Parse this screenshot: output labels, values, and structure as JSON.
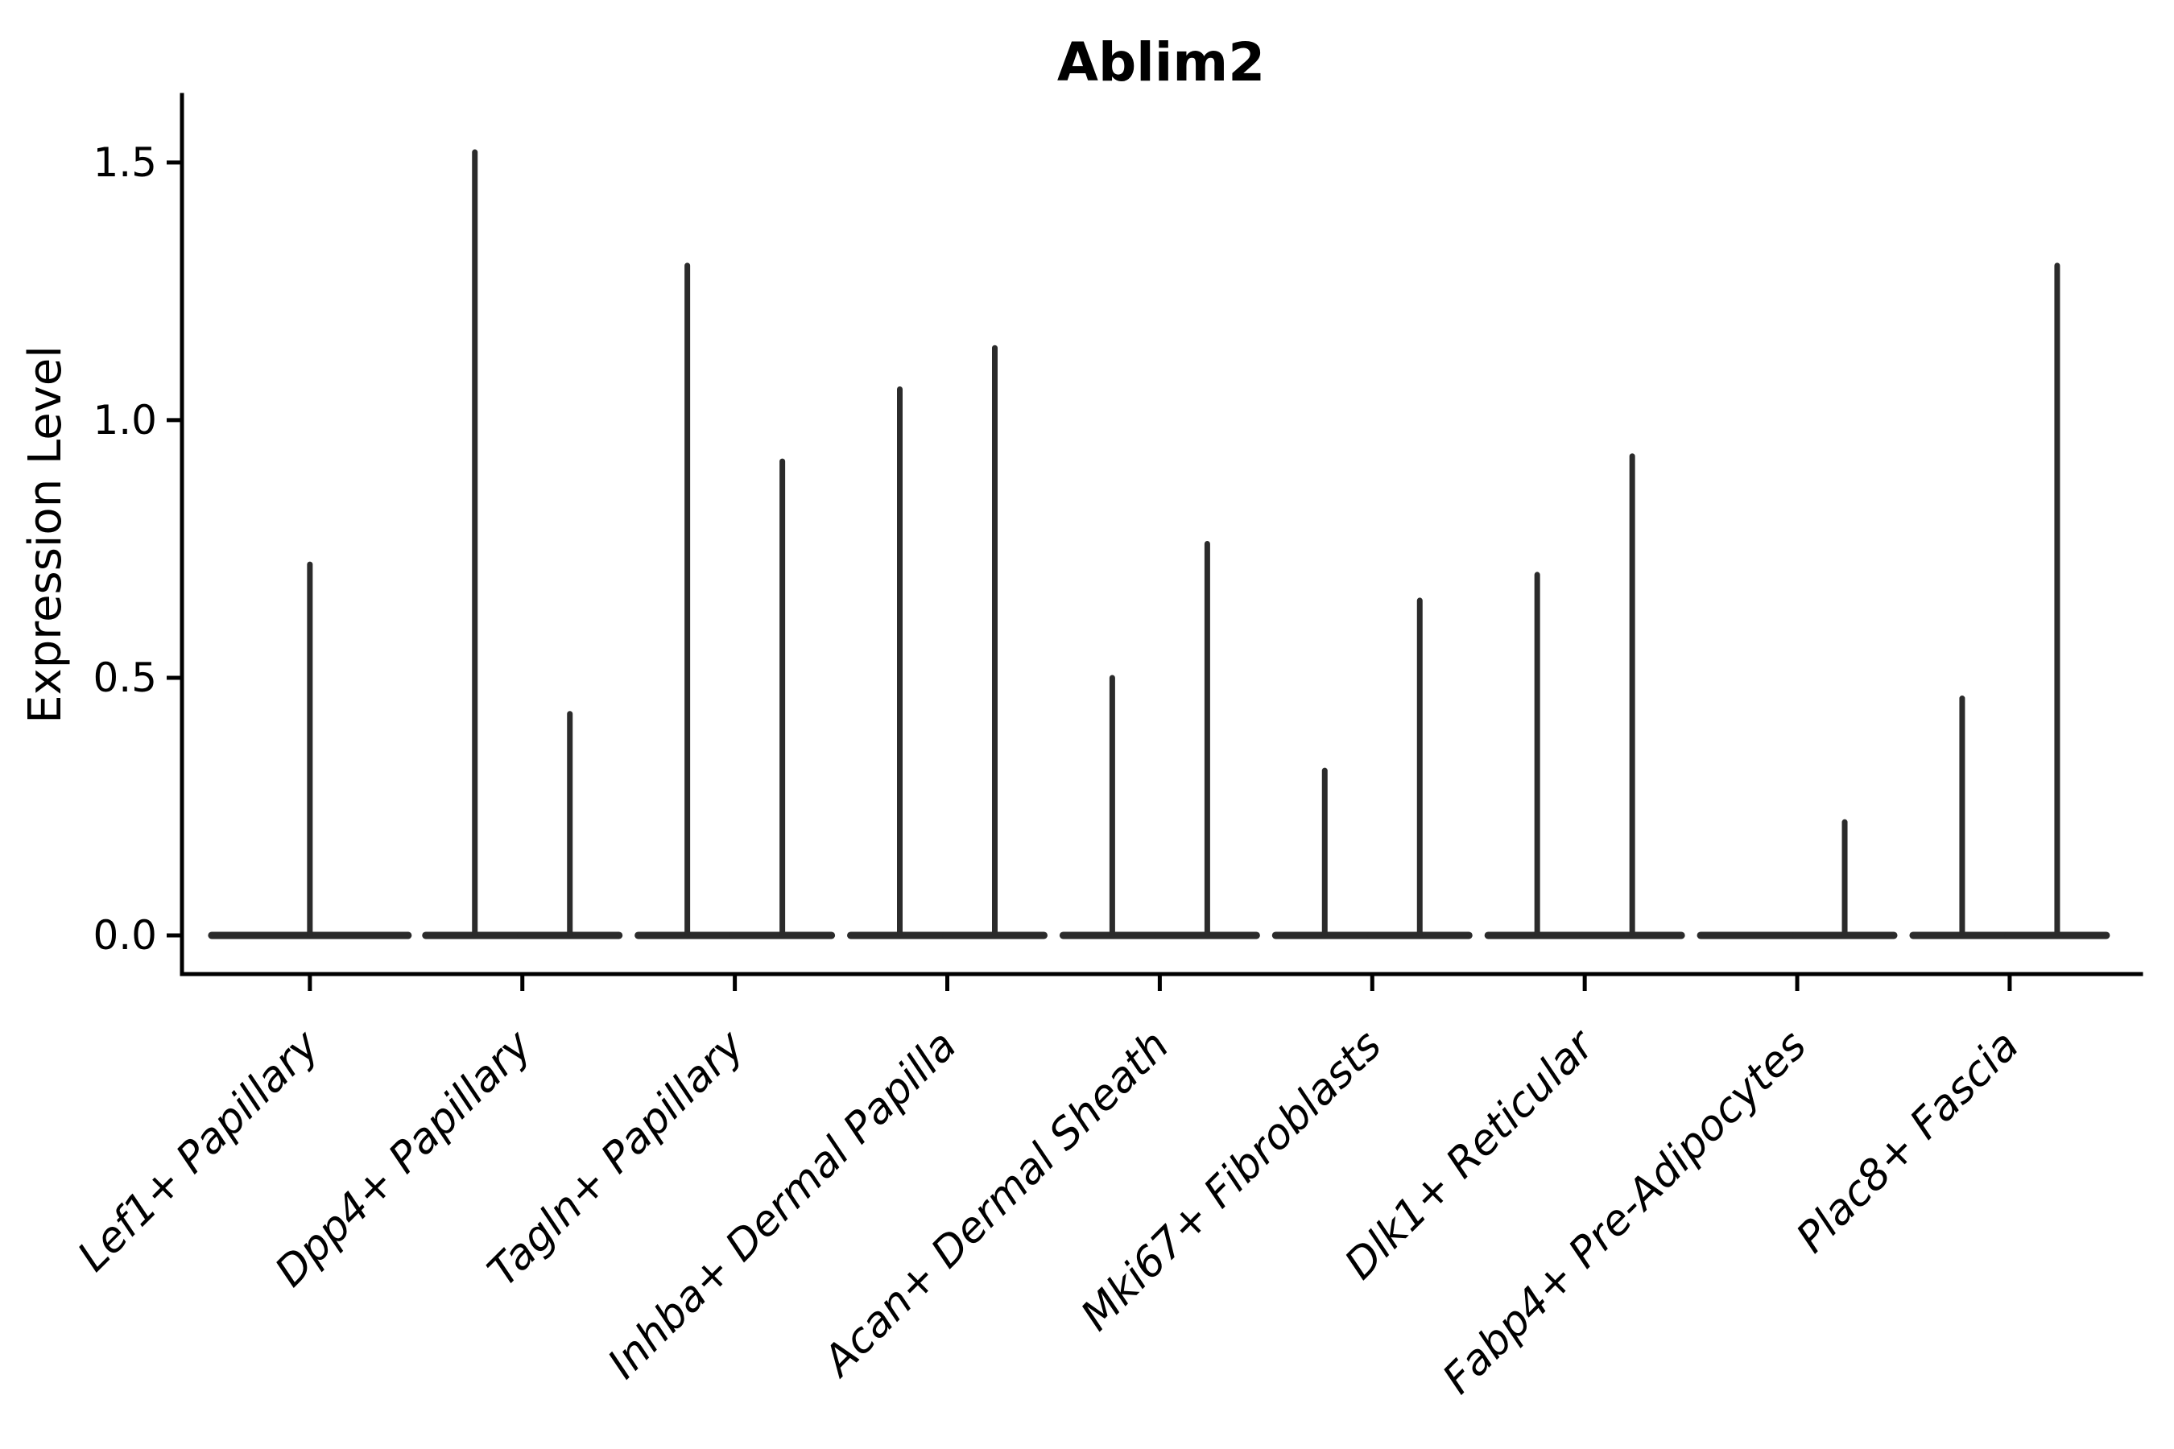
{
  "chart_data": {
    "type": "violin",
    "title": "Ablim2",
    "xlabel": "",
    "ylabel": "Expression Level",
    "grid": false,
    "legend": null,
    "background_color": "#ffffff",
    "axis_color": "#000000",
    "violin_color": "#2b2b2b",
    "ylim": [
      -0.075,
      1.631
    ],
    "yticks": [
      0,
      0.5,
      1,
      1.5
    ],
    "ytick_labels": [
      "0.0",
      "0.5",
      "1.0",
      "1.5"
    ],
    "xtick_label_rotation_deg": 45,
    "categories": [
      "Lef1+ Papillary",
      "Dpp4+ Papillary",
      "Tagln+ Papillary",
      "Inhba+ Dermal Papilla",
      "Acan+ Dermal Sheath",
      "Mki67+ Fibroblasts",
      "Dlk1+ Reticular",
      "Fabp4+ Pre-Adipocytes",
      "Plac8+ Fascia"
    ],
    "description": "Violin plot of Ablim2 expression; each violin is flat at 0 with a thin spike to its maximum expression value.",
    "violins": [
      {
        "category": "Lef1+ Papillary",
        "groups": [
          {
            "position": "center",
            "max": 0.72
          }
        ]
      },
      {
        "category": "Dpp4+ Papillary",
        "groups": [
          {
            "position": "left",
            "max": 1.52
          },
          {
            "position": "right",
            "max": 0.43
          }
        ]
      },
      {
        "category": "Tagln+ Papillary",
        "groups": [
          {
            "position": "left",
            "max": 1.3
          },
          {
            "position": "right",
            "max": 0.92
          }
        ]
      },
      {
        "category": "Inhba+ Dermal Papilla",
        "groups": [
          {
            "position": "left",
            "max": 1.06
          },
          {
            "position": "right",
            "max": 1.14
          }
        ]
      },
      {
        "category": "Acan+ Dermal Sheath",
        "groups": [
          {
            "position": "left",
            "max": 0.5
          },
          {
            "position": "right",
            "max": 0.76
          }
        ]
      },
      {
        "category": "Mki67+ Fibroblasts",
        "groups": [
          {
            "position": "left",
            "max": 0.32
          },
          {
            "position": "right",
            "max": 0.65
          }
        ]
      },
      {
        "category": "Dlk1+ Reticular",
        "groups": [
          {
            "position": "left",
            "max": 0.7
          },
          {
            "position": "right",
            "max": 0.93
          }
        ]
      },
      {
        "category": "Fabp4+ Pre-Adipocytes",
        "groups": [
          {
            "position": "left",
            "max": 0.0
          },
          {
            "position": "right",
            "max": 0.22
          }
        ]
      },
      {
        "category": "Plac8+ Fascia",
        "groups": [
          {
            "position": "left",
            "max": 0.46
          },
          {
            "position": "right",
            "max": 1.3
          }
        ]
      }
    ]
  }
}
